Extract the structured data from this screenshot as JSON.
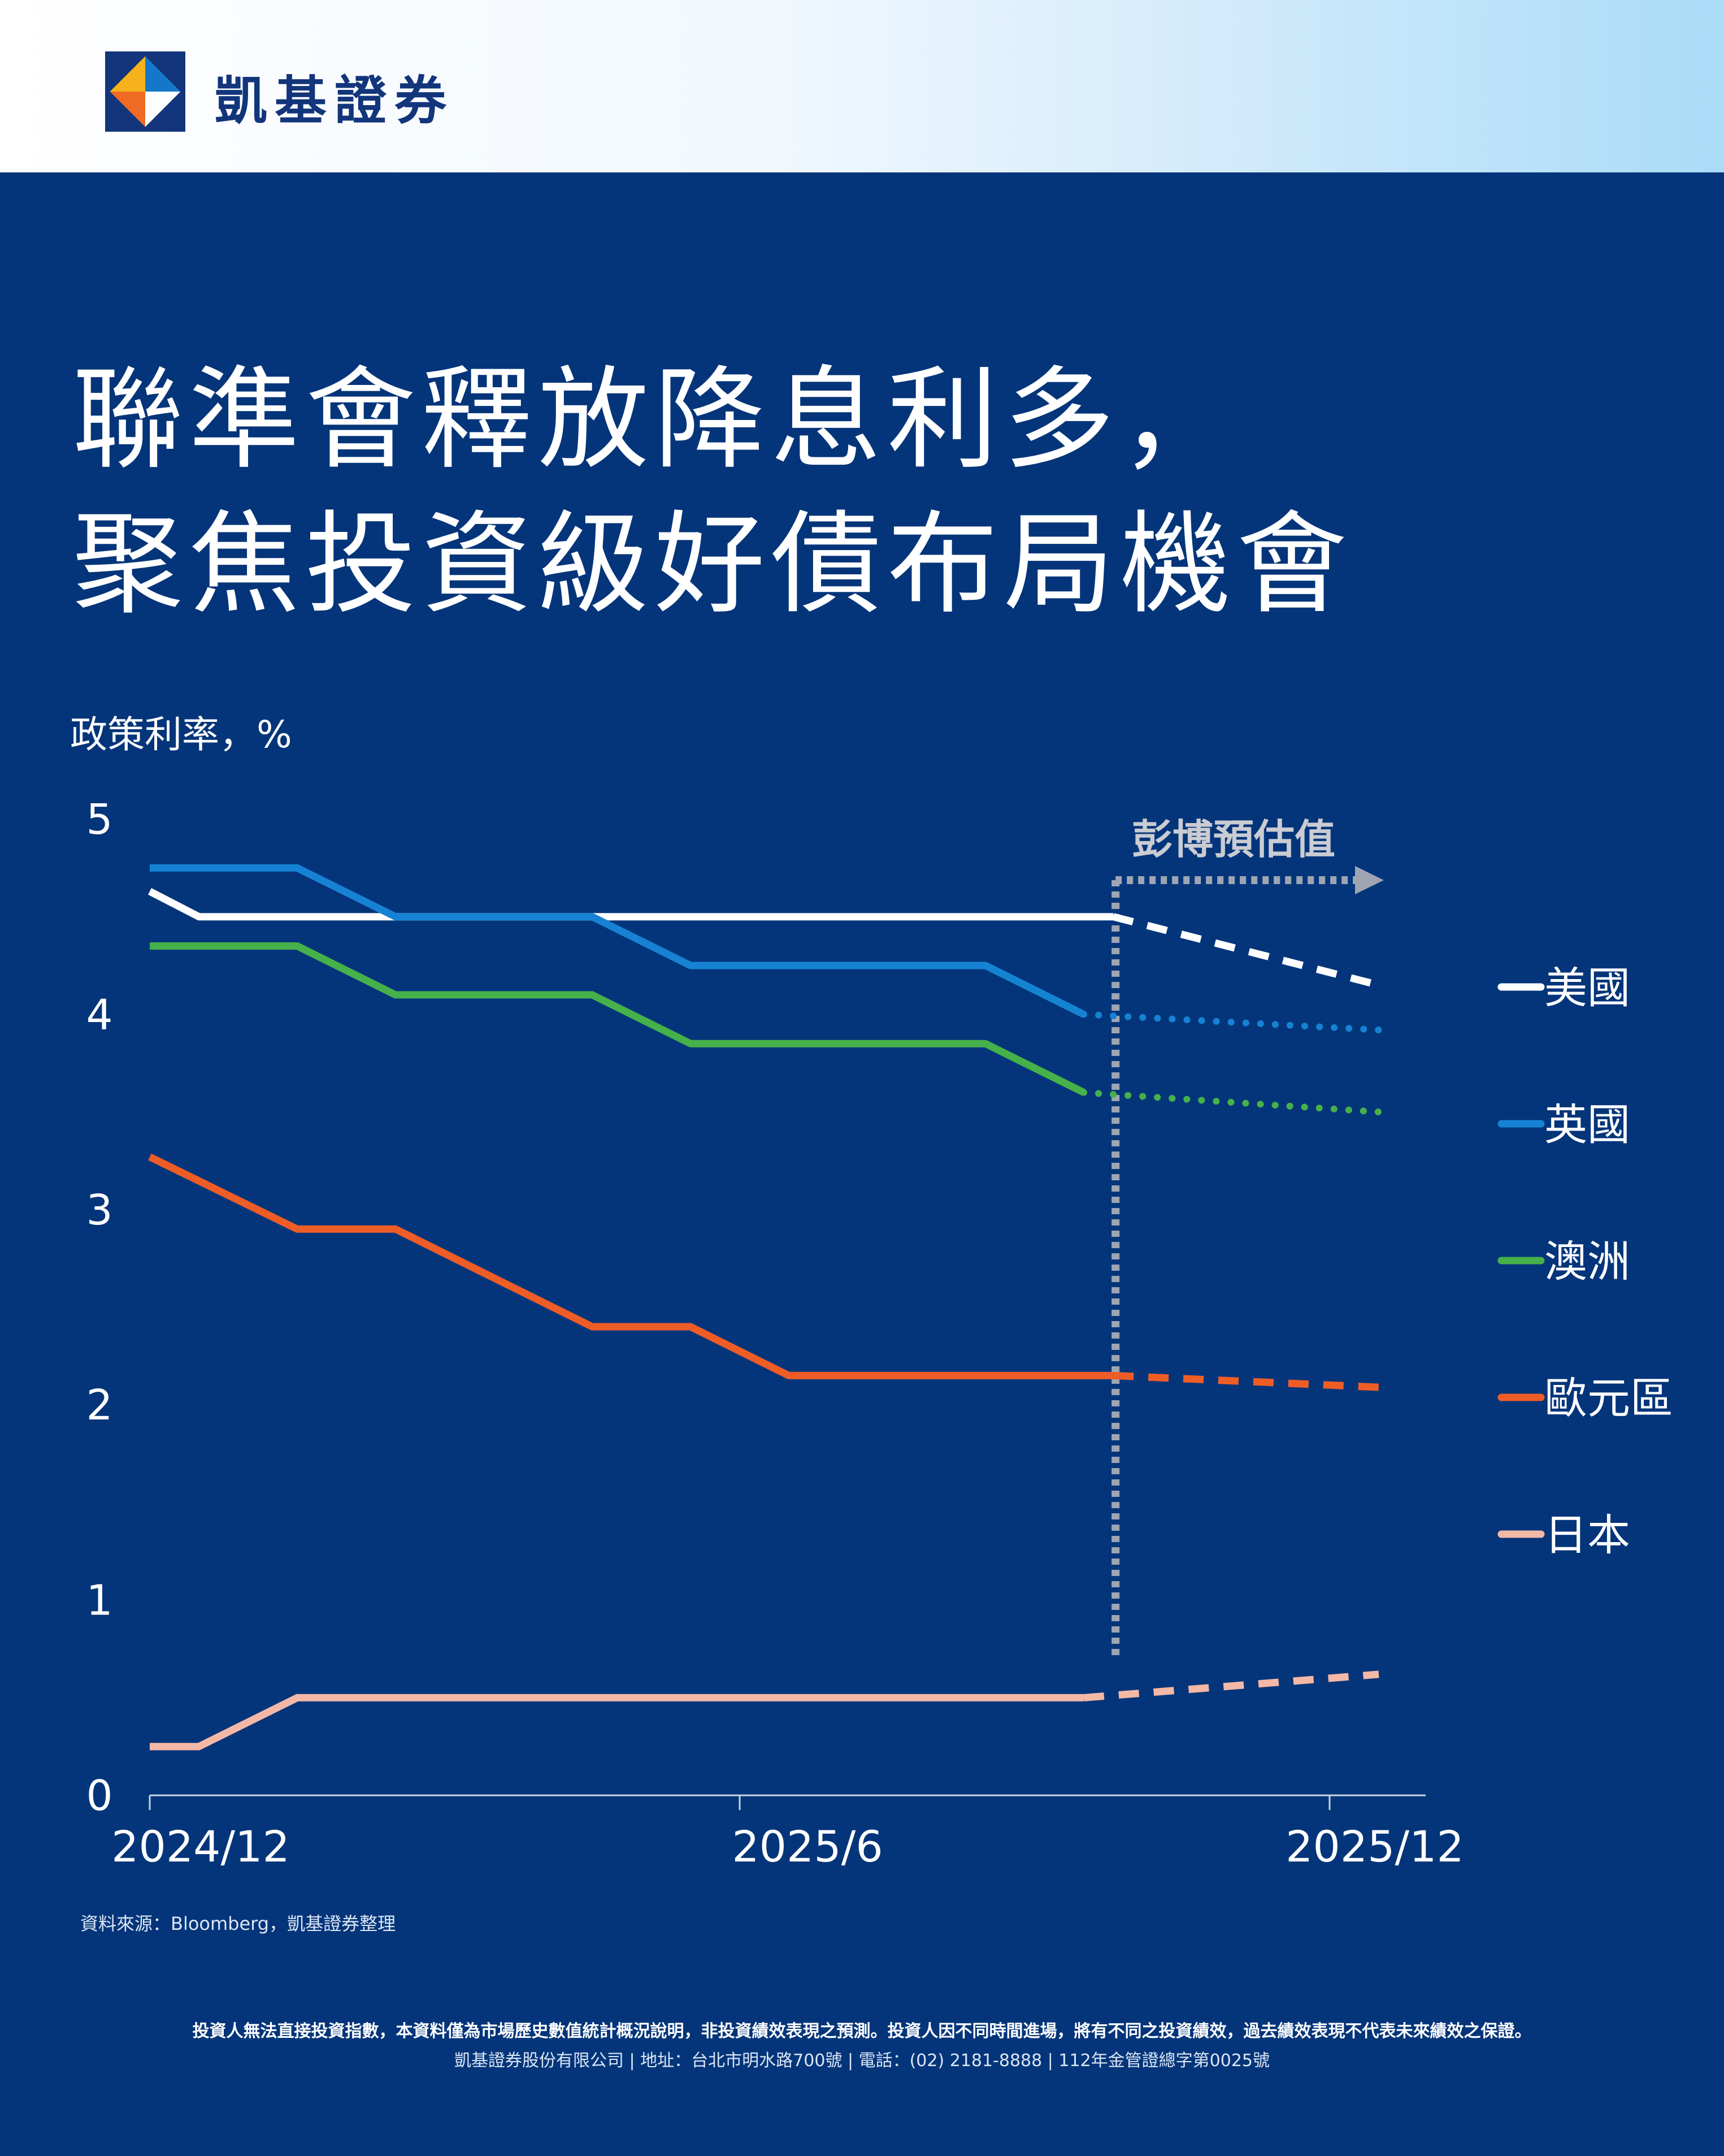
{
  "brand": {
    "name": "凱基證券",
    "colors": {
      "navy": "#12357b",
      "orange": "#ef6a23",
      "blue": "#1477c9",
      "yellow": "#f6b21a"
    }
  },
  "title": {
    "line1": "聯準會釋放降息利多，",
    "line2": "聚焦投資級好債布局機會"
  },
  "chart_data": {
    "type": "line",
    "ylabel": "政策利率，%",
    "ylim": [
      0,
      5
    ],
    "yticks": [
      "0",
      "1",
      "2",
      "3",
      "4",
      "5"
    ],
    "xlim": [
      0,
      13
    ],
    "xticks": [
      {
        "label": "2024/12",
        "value": 0
      },
      {
        "label": "2025/6",
        "value": 6
      },
      {
        "label": "2025/12",
        "value": 12
      }
    ],
    "forecast_start": 9.8,
    "forecast_label": "彭博預估值",
    "series": [
      {
        "name": "美國",
        "color": "#ffffff",
        "style": "dashed",
        "actual": [
          [
            0,
            4.63
          ],
          [
            0.5,
            4.5
          ],
          [
            9.8,
            4.5
          ]
        ],
        "forecast": [
          [
            9.8,
            4.5
          ],
          [
            12.5,
            4.15
          ]
        ]
      },
      {
        "name": "英國",
        "color": "#1682d4",
        "style": "dotted",
        "actual": [
          [
            0,
            4.75
          ],
          [
            1.5,
            4.75
          ],
          [
            2.5,
            4.5
          ],
          [
            4.5,
            4.5
          ],
          [
            5.5,
            4.25
          ],
          [
            8.5,
            4.25
          ],
          [
            9.5,
            4.0
          ]
        ],
        "forecast": [
          [
            9.5,
            4.0
          ],
          [
            12.5,
            3.92
          ]
        ]
      },
      {
        "name": "澳洲",
        "color": "#46b14a",
        "style": "dotted",
        "actual": [
          [
            0,
            4.35
          ],
          [
            1.5,
            4.35
          ],
          [
            2.5,
            4.1
          ],
          [
            4.5,
            4.1
          ],
          [
            5.5,
            3.85
          ],
          [
            8.5,
            3.85
          ],
          [
            9.5,
            3.6
          ]
        ],
        "forecast": [
          [
            9.5,
            3.6
          ],
          [
            12.5,
            3.5
          ]
        ]
      },
      {
        "name": "歐元區",
        "color": "#ef5d27",
        "style": "dashed",
        "actual": [
          [
            0,
            3.27
          ],
          [
            1.5,
            2.9
          ],
          [
            2.5,
            2.9
          ],
          [
            4.5,
            2.4
          ],
          [
            5.5,
            2.4
          ],
          [
            6.5,
            2.15
          ],
          [
            9.8,
            2.15
          ]
        ],
        "forecast": [
          [
            9.8,
            2.15
          ],
          [
            12.5,
            2.09
          ]
        ]
      },
      {
        "name": "日本",
        "color": "#f4b8a6",
        "style": "dashed",
        "actual": [
          [
            0,
            0.25
          ],
          [
            0.5,
            0.25
          ],
          [
            1.5,
            0.5
          ],
          [
            9.5,
            0.5
          ]
        ],
        "forecast": [
          [
            9.5,
            0.5
          ],
          [
            12.5,
            0.62
          ]
        ]
      }
    ]
  },
  "footer": {
    "source": "資料來源：Bloomberg，凱基證券整理",
    "disclaimer": "投資人無法直接投資指數，本資料僅為市場歷史數值統計概況說明，非投資績效表現之預測。投資人因不同時間進場，將有不同之投資績效，過去績效表現不代表未來績效之保證。",
    "company": "凱基證券股份有限公司 | 地址：台北市明水路700號 | 電話：(02) 2181-8888 | 112年金管證總字第0025號"
  }
}
